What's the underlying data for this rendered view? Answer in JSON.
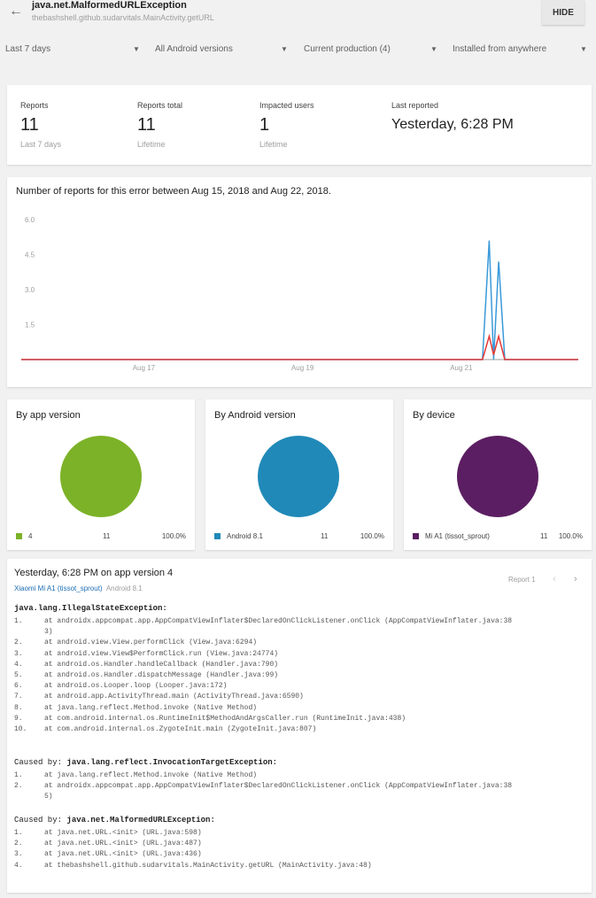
{
  "header": {
    "title": "java.net.MalformedURLException",
    "subtitle": "thebashshell.github.sudarvitals.MainActivity.getURL",
    "hide_label": "HIDE"
  },
  "filters": [
    {
      "label": "Last 7 days"
    },
    {
      "label": "All Android versions"
    },
    {
      "label": "Current production (4)"
    },
    {
      "label": "Installed from anywhere"
    }
  ],
  "stats": [
    {
      "label": "Reports",
      "value": "11",
      "sub": "Last 7 days"
    },
    {
      "label": "Reports total",
      "value": "11",
      "sub": "Lifetime"
    },
    {
      "label": "Impacted users",
      "value": "1",
      "sub": "Lifetime"
    },
    {
      "label": "Last reported",
      "value": "Yesterday, 6:28 PM",
      "sub": ""
    }
  ],
  "chart_data": {
    "type": "line",
    "title": "Number of reports for this error between Aug 15, 2018 and Aug 22, 2018.",
    "x_ticks": [
      "Aug 17",
      "Aug 19",
      "Aug 21"
    ],
    "y_ticks": [
      "1.5",
      "3.0",
      "4.5",
      "6.0"
    ],
    "ylim": [
      0,
      6
    ],
    "grid": false,
    "series": [
      {
        "color": "#3a9ad9",
        "points": [
          [
            0,
            0
          ],
          [
            0.828,
            0
          ],
          [
            0.84,
            5.1
          ],
          [
            0.848,
            0
          ],
          [
            0.857,
            4.2
          ],
          [
            0.868,
            0
          ],
          [
            1,
            0
          ]
        ]
      },
      {
        "color": "#e53935",
        "points": [
          [
            0,
            0
          ],
          [
            0.828,
            0
          ],
          [
            0.84,
            1
          ],
          [
            0.848,
            0.2
          ],
          [
            0.857,
            1
          ],
          [
            0.868,
            0
          ],
          [
            1,
            0
          ]
        ]
      }
    ]
  },
  "pies": [
    {
      "title": "By app version",
      "color": "#7cb228",
      "legend": "4",
      "count": "11",
      "percent": "100.0%"
    },
    {
      "title": "By Android version",
      "color": "#2089b8",
      "legend": "Android 8.1",
      "count": "11",
      "percent": "100.0%"
    },
    {
      "title": "By device",
      "color": "#5b1e62",
      "legend": "Mi A1 (tissot_sprout)",
      "count": "11",
      "percent": "100.0%"
    }
  ],
  "report": {
    "title": "Yesterday, 6:28 PM on app version 4",
    "device": "Xiaomi Mi A1 (tissot_sprout)",
    "android": "Android 8.1",
    "pager": "Report 1",
    "exception1": "java.lang.IllegalStateException:",
    "lines1": [
      {
        "n": "1.",
        "t": "at androidx.appcompat.app.AppCompatViewInflater$DeclaredOnClickListener.onClick (AppCompatViewInflater.java:38"
      },
      {
        "n": "",
        "t": "3)"
      },
      {
        "n": "2.",
        "t": "at android.view.View.performClick (View.java:6294)"
      },
      {
        "n": "3.",
        "t": "at android.view.View$PerformClick.run (View.java:24774)"
      },
      {
        "n": "4.",
        "t": "at android.os.Handler.handleCallback (Handler.java:790)"
      },
      {
        "n": "5.",
        "t": "at android.os.Handler.dispatchMessage (Handler.java:99)"
      },
      {
        "n": "6.",
        "t": "at android.os.Looper.loop (Looper.java:172)"
      },
      {
        "n": "7.",
        "t": "at android.app.ActivityThread.main (ActivityThread.java:6590)"
      },
      {
        "n": "8.",
        "t": "at java.lang.reflect.Method.invoke (Native Method)"
      },
      {
        "n": "9.",
        "t": "at com.android.internal.os.RuntimeInit$MethodAndArgsCaller.run (RuntimeInit.java:438)"
      },
      {
        "n": "10.",
        "t": "at com.android.internal.os.ZygoteInit.main (ZygoteInit.java:807)"
      }
    ],
    "caused_label": "Caused by:",
    "exception2": "java.lang.reflect.InvocationTargetException:",
    "lines2": [
      {
        "n": "1.",
        "t": "at java.lang.reflect.Method.invoke (Native Method)"
      },
      {
        "n": "2.",
        "t": "at androidx.appcompat.app.AppCompatViewInflater$DeclaredOnClickListener.onClick (AppCompatViewInflater.java:38"
      },
      {
        "n": "",
        "t": "5)"
      }
    ],
    "exception3": "java.net.MalformedURLException:",
    "lines3": [
      {
        "n": "1.",
        "t": "at java.net.URL.<init> (URL.java:598)"
      },
      {
        "n": "2.",
        "t": "at java.net.URL.<init> (URL.java:487)"
      },
      {
        "n": "3.",
        "t": "at java.net.URL.<init> (URL.java:436)"
      },
      {
        "n": "4.",
        "t": "at thebashshell.github.sudarvitals.MainActivity.getURL (MainActivity.java:48)"
      }
    ]
  }
}
